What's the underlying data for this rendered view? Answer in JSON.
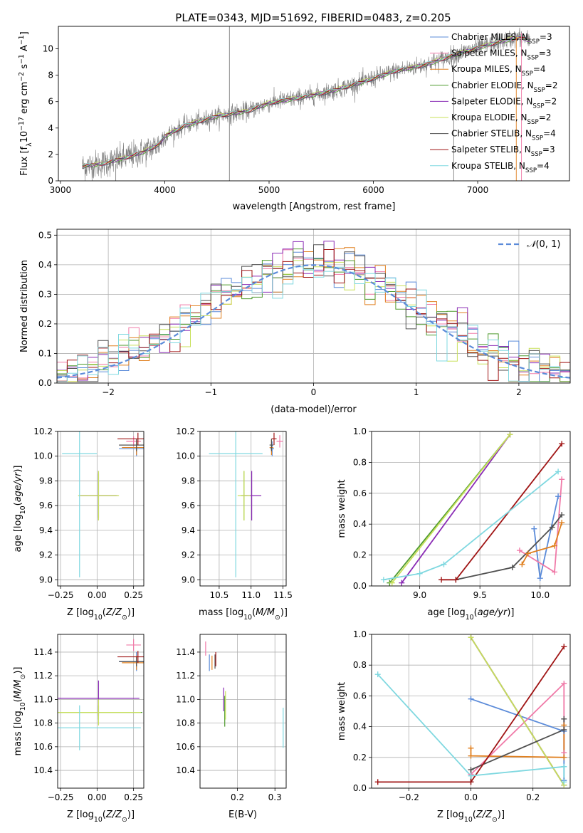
{
  "figure": {
    "title": "PLATE=0343, MJD=51692, FIBERID=0483, z=0.205"
  },
  "colors": {
    "chabrier_miles": "#5b8bd9",
    "salpeter_miles": "#f07aa8",
    "kroupa_miles": "#e08020",
    "chabrier_elodie": "#4e9a2e",
    "salpeter_elodie": "#8a2bb5",
    "kroupa_elodie": "#c8e05a",
    "chabrier_stelib": "#505050",
    "salpeter_stelib": "#a01515",
    "kroupa_stelib": "#7fd8e0",
    "data": "#808080",
    "gaussian": "#5b8bd9",
    "grid": "#b0b0b0"
  },
  "chart_data": [
    {
      "id": "spectrum",
      "type": "line",
      "title": "PLATE=0343, MJD=51692, FIBERID=0483, z=0.205",
      "xlabel": "wavelength [Angstrom, rest frame]",
      "ylabel": "Flux [f_λ 10^-17 erg cm^-2 s^-1 A^-1]",
      "xlim": [
        2980,
        7880
      ],
      "ylim": [
        0,
        11.7
      ],
      "xticks": [
        3000,
        4000,
        5000,
        6000,
        7000
      ],
      "yticks": [
        0,
        2,
        4,
        6,
        8,
        10
      ],
      "grid": false,
      "legend_position": "top-right",
      "legend": [
        "Chabrier MILES, N_SSP=3",
        "Salpeter MILES, N_SSP=3",
        "Kroupa MILES, N_SSP=4",
        "Chabrier ELODIE, N_SSP=2",
        "Salpeter ELODIE, N_SSP=2",
        "Kroupa ELODIE, N_SSP=2",
        "Chabrier STELIB, N_SSP=4",
        "Salpeter STELIB, N_SSP=3",
        "Kroupa STELIB, N_SSP=4"
      ],
      "continuum_knots": [
        [
          3210,
          1.1
        ],
        [
          3400,
          1.3
        ],
        [
          3600,
          1.7
        ],
        [
          3800,
          2.2
        ],
        [
          3950,
          2.8
        ],
        [
          4000,
          3.4
        ],
        [
          4200,
          4.2
        ],
        [
          4500,
          4.9
        ],
        [
          4800,
          5.3
        ],
        [
          5000,
          5.9
        ],
        [
          5300,
          6.3
        ],
        [
          5600,
          6.8
        ],
        [
          5900,
          7.5
        ],
        [
          6200,
          8.3
        ],
        [
          6500,
          8.8
        ],
        [
          6800,
          9.6
        ],
        [
          7100,
          10.3
        ],
        [
          7400,
          10.9
        ],
        [
          7500,
          10.6
        ]
      ],
      "data_wave_range": [
        3210,
        7500
      ],
      "spikes": [
        [
          4620,
          0,
          11.7
        ],
        [
          3530,
          0,
          1.3
        ],
        [
          6770,
          0,
          9.5
        ],
        [
          7370,
          0,
          10.9
        ],
        [
          7420,
          0,
          11.2
        ]
      ]
    },
    {
      "id": "residuals",
      "type": "line",
      "xlabel": "(data-model)/error",
      "ylabel": "Normed distribution",
      "xlim": [
        -2.5,
        2.5
      ],
      "ylim": [
        0,
        0.52
      ],
      "xticks": [
        -2,
        -1,
        0,
        1,
        2
      ],
      "yticks": [
        0.0,
        0.1,
        0.2,
        0.3,
        0.4,
        0.5
      ],
      "grid": true,
      "legend_position": "top-right",
      "legend": [
        "N(0,1)"
      ],
      "bin_width": 0.1
    },
    {
      "id": "age_vs_z",
      "type": "scatter",
      "xlabel": "Z [log10(Z/Z_sun)]",
      "ylabel": "age  [log10(age/yr)]",
      "xlim": [
        -0.27,
        0.32
      ],
      "ylim": [
        8.95,
        10.2
      ],
      "xticks": [
        -0.25,
        0.0,
        0.25
      ],
      "yticks": [
        9.0,
        9.2,
        9.4,
        9.6,
        9.8,
        10.0,
        10.2
      ],
      "grid": true,
      "points": [
        {
          "model": "chabrier_miles",
          "x": 0.27,
          "y": 10.06,
          "xerr": 0.12,
          "yerr": 0.06
        },
        {
          "model": "salpeter_miles",
          "x": 0.25,
          "y": 10.12,
          "xerr": 0.05,
          "yerr": 0.04
        },
        {
          "model": "kroupa_miles",
          "x": 0.27,
          "y": 10.07,
          "xerr": 0.1,
          "yerr": 0.06
        },
        {
          "model": "chabrier_elodie",
          "x": 0.01,
          "y": 9.68,
          "xerr": 0.12,
          "yerr": 0.18
        },
        {
          "model": "salpeter_elodie",
          "x": 0.01,
          "y": 9.68,
          "xerr": 0.13,
          "yerr": 0.2
        },
        {
          "model": "kroupa_elodie",
          "x": 0.01,
          "y": 9.68,
          "xerr": 0.14,
          "yerr": 0.2
        },
        {
          "model": "chabrier_stelib",
          "x": 0.27,
          "y": 10.09,
          "xerr": 0.12,
          "yerr": 0.05
        },
        {
          "model": "salpeter_stelib",
          "x": 0.28,
          "y": 10.14,
          "xerr": 0.14,
          "yerr": 0.05
        },
        {
          "model": "kroupa_stelib",
          "x": -0.12,
          "y": 10.02,
          "xerr": 0.12,
          "yerr": 1.0
        }
      ]
    },
    {
      "id": "age_vs_mass",
      "type": "scatter",
      "xlabel": "mass [log10(M/M_sun)]",
      "ylabel": "",
      "xlim": [
        10.2,
        11.55
      ],
      "ylim": [
        8.95,
        10.2
      ],
      "xticks": [
        10.5,
        11.0,
        11.5
      ],
      "yticks": [
        9.0,
        9.2,
        9.4,
        9.6,
        9.8,
        10.0,
        10.2
      ],
      "grid": true,
      "points": [
        {
          "model": "chabrier_miles",
          "x": 11.33,
          "y": 10.06,
          "xerr": 0.03,
          "yerr": 0.06
        },
        {
          "model": "salpeter_miles",
          "x": 11.45,
          "y": 10.12,
          "xerr": 0.05,
          "yerr": 0.05
        },
        {
          "model": "kroupa_miles",
          "x": 11.32,
          "y": 10.07,
          "xerr": 0.03,
          "yerr": 0.06
        },
        {
          "model": "chabrier_elodie",
          "x": 10.89,
          "y": 9.68,
          "xerr": 0.05,
          "yerr": 0.2
        },
        {
          "model": "salpeter_elodie",
          "x": 11.01,
          "y": 9.68,
          "xerr": 0.15,
          "yerr": 0.2
        },
        {
          "model": "kroupa_elodie",
          "x": 10.89,
          "y": 9.68,
          "xerr": 0.1,
          "yerr": 0.2
        },
        {
          "model": "chabrier_stelib",
          "x": 11.32,
          "y": 10.09,
          "xerr": 0.03,
          "yerr": 0.05
        },
        {
          "model": "salpeter_stelib",
          "x": 11.36,
          "y": 10.14,
          "xerr": 0.04,
          "yerr": 0.05
        },
        {
          "model": "kroupa_stelib",
          "x": 10.76,
          "y": 10.02,
          "xerr": 0.42,
          "yerr": 1.0
        }
      ]
    },
    {
      "id": "weight_vs_age",
      "type": "line",
      "xlabel": "age  [log10(age/yr)]",
      "ylabel": "mass weight",
      "xlim": [
        8.6,
        10.25
      ],
      "ylim": [
        0.0,
        1.0
      ],
      "xticks": [
        9.0,
        9.5,
        10.0
      ],
      "yticks": [
        0.0,
        0.2,
        0.4,
        0.6,
        0.8,
        1.0
      ],
      "grid": true,
      "series": [
        {
          "model": "chabrier_miles",
          "x": [
            9.95,
            10.0,
            10.15
          ],
          "y": [
            0.37,
            0.05,
            0.58
          ]
        },
        {
          "model": "salpeter_miles",
          "x": [
            9.83,
            10.12,
            10.18
          ],
          "y": [
            0.23,
            0.09,
            0.69
          ]
        },
        {
          "model": "kroupa_miles",
          "x": [
            9.85,
            9.9,
            10.12,
            10.18
          ],
          "y": [
            0.14,
            0.21,
            0.26,
            0.41
          ]
        },
        {
          "model": "chabrier_elodie",
          "x": [
            8.75,
            9.75
          ],
          "y": [
            0.02,
            0.98
          ]
        },
        {
          "model": "salpeter_elodie",
          "x": [
            8.85,
            9.75
          ],
          "y": [
            0.02,
            0.98
          ]
        },
        {
          "model": "kroupa_elodie",
          "x": [
            8.77,
            9.75
          ],
          "y": [
            0.02,
            0.98
          ]
        },
        {
          "model": "chabrier_stelib",
          "x": [
            9.3,
            9.77,
            10.1,
            10.18
          ],
          "y": [
            0.04,
            0.12,
            0.38,
            0.46
          ]
        },
        {
          "model": "salpeter_stelib",
          "x": [
            9.18,
            9.3,
            10.18
          ],
          "y": [
            0.04,
            0.04,
            0.92
          ]
        },
        {
          "model": "kroupa_stelib",
          "x": [
            8.7,
            9.0,
            9.2,
            10.15
          ],
          "y": [
            0.04,
            0.08,
            0.14,
            0.74
          ]
        }
      ]
    },
    {
      "id": "mass_vs_z",
      "type": "scatter",
      "xlabel": "Z [log10(Z/Z_sun)]",
      "ylabel": "mass [log10(M/M_sun)]",
      "xlim": [
        -0.27,
        0.32
      ],
      "ylim": [
        10.25,
        11.55
      ],
      "xticks": [
        -0.25,
        0.0,
        0.25
      ],
      "yticks": [
        10.4,
        10.6,
        10.8,
        11.0,
        11.2,
        11.4
      ],
      "grid": true,
      "points": [
        {
          "model": "chabrier_miles",
          "x": 0.27,
          "y": 11.32,
          "xerr": 0.12,
          "yerr": 0.08
        },
        {
          "model": "salpeter_miles",
          "x": 0.25,
          "y": 11.46,
          "xerr": 0.05,
          "yerr": 0.05
        },
        {
          "model": "kroupa_miles",
          "x": 0.27,
          "y": 11.31,
          "xerr": 0.1,
          "yerr": 0.06
        },
        {
          "model": "chabrier_elodie",
          "x": 0.01,
          "y": 10.89,
          "xerr": 0.3,
          "yerr": 0.06
        },
        {
          "model": "salpeter_elodie",
          "x": 0.01,
          "y": 11.01,
          "xerr": 0.28,
          "yerr": 0.15
        },
        {
          "model": "kroupa_elodie",
          "x": 0.01,
          "y": 10.89,
          "xerr": 0.29,
          "yerr": 0.11
        },
        {
          "model": "chabrier_stelib",
          "x": 0.27,
          "y": 11.32,
          "xerr": 0.12,
          "yerr": 0.04
        },
        {
          "model": "salpeter_stelib",
          "x": 0.28,
          "y": 11.36,
          "xerr": 0.14,
          "yerr": 0.05
        },
        {
          "model": "kroupa_stelib",
          "x": -0.12,
          "y": 10.76,
          "xerr": 0.42,
          "yerr": 0.19
        }
      ]
    },
    {
      "id": "mass_vs_ebv",
      "type": "scatter",
      "xlabel": "E(B-V)",
      "ylabel": "",
      "xlim": [
        0.1,
        0.33
      ],
      "ylim": [
        10.25,
        11.55
      ],
      "xticks": [
        0.2,
        0.3
      ],
      "yticks": [
        10.4,
        10.6,
        10.8,
        11.0,
        11.2,
        11.4
      ],
      "grid": true,
      "points": [
        {
          "model": "chabrier_miles",
          "x": 0.125,
          "y": 11.31,
          "xerr": 0.0,
          "yerr": 0.07
        },
        {
          "model": "salpeter_miles",
          "x": 0.115,
          "y": 11.43,
          "xerr": 0.0,
          "yerr": 0.06
        },
        {
          "model": "kroupa_miles",
          "x": 0.132,
          "y": 11.31,
          "xerr": 0.0,
          "yerr": 0.06
        },
        {
          "model": "chabrier_elodie",
          "x": 0.166,
          "y": 10.9,
          "xerr": 0.0,
          "yerr": 0.13
        },
        {
          "model": "salpeter_elodie",
          "x": 0.163,
          "y": 11.0,
          "xerr": 0.0,
          "yerr": 0.1
        },
        {
          "model": "kroupa_elodie",
          "x": 0.168,
          "y": 10.95,
          "xerr": 0.0,
          "yerr": 0.12
        },
        {
          "model": "chabrier_stelib",
          "x": 0.14,
          "y": 11.32,
          "xerr": 0.0,
          "yerr": 0.06
        },
        {
          "model": "salpeter_stelib",
          "x": 0.142,
          "y": 11.34,
          "xerr": 0.0,
          "yerr": 0.06
        },
        {
          "model": "kroupa_stelib",
          "x": 0.322,
          "y": 10.76,
          "xerr": 0.0,
          "yerr": 0.17
        }
      ]
    },
    {
      "id": "weight_vs_z",
      "type": "line",
      "xlabel": "Z [log10(Z/Z_sun)]",
      "ylabel": "mass weight",
      "xlim": [
        -0.32,
        0.32
      ],
      "ylim": [
        0.0,
        1.0
      ],
      "xticks": [
        -0.2,
        0.0,
        0.2
      ],
      "yticks": [
        0.0,
        0.2,
        0.4,
        0.6,
        0.8,
        1.0
      ],
      "grid": true,
      "series": [
        {
          "model": "chabrier_miles",
          "x": [
            0.0,
            0.3,
            0.3
          ],
          "y": [
            0.58,
            0.37,
            0.05
          ]
        },
        {
          "model": "salpeter_miles",
          "x": [
            0.0,
            0.3,
            0.3
          ],
          "y": [
            0.09,
            0.68,
            0.23
          ]
        },
        {
          "model": "kroupa_miles",
          "x": [
            0.0,
            0.0,
            0.3,
            0.3
          ],
          "y": [
            0.26,
            0.21,
            0.2,
            0.41
          ]
        },
        {
          "model": "chabrier_elodie",
          "x": [
            0.0,
            0.3
          ],
          "y": [
            0.98,
            0.02
          ]
        },
        {
          "model": "salpeter_elodie",
          "x": [
            0.0,
            0.3
          ],
          "y": [
            0.98,
            0.02
          ]
        },
        {
          "model": "kroupa_elodie",
          "x": [
            0.0,
            0.3
          ],
          "y": [
            0.98,
            0.02
          ]
        },
        {
          "model": "chabrier_stelib",
          "x": [
            0.0,
            0.0,
            0.3,
            0.3
          ],
          "y": [
            0.04,
            0.12,
            0.38,
            0.45
          ]
        },
        {
          "model": "salpeter_stelib",
          "x": [
            -0.3,
            0.0,
            0.3
          ],
          "y": [
            0.04,
            0.04,
            0.92
          ]
        },
        {
          "model": "kroupa_stelib",
          "x": [
            -0.3,
            0.0,
            0.3,
            0.3
          ],
          "y": [
            0.74,
            0.08,
            0.14,
            0.04
          ]
        }
      ]
    }
  ]
}
